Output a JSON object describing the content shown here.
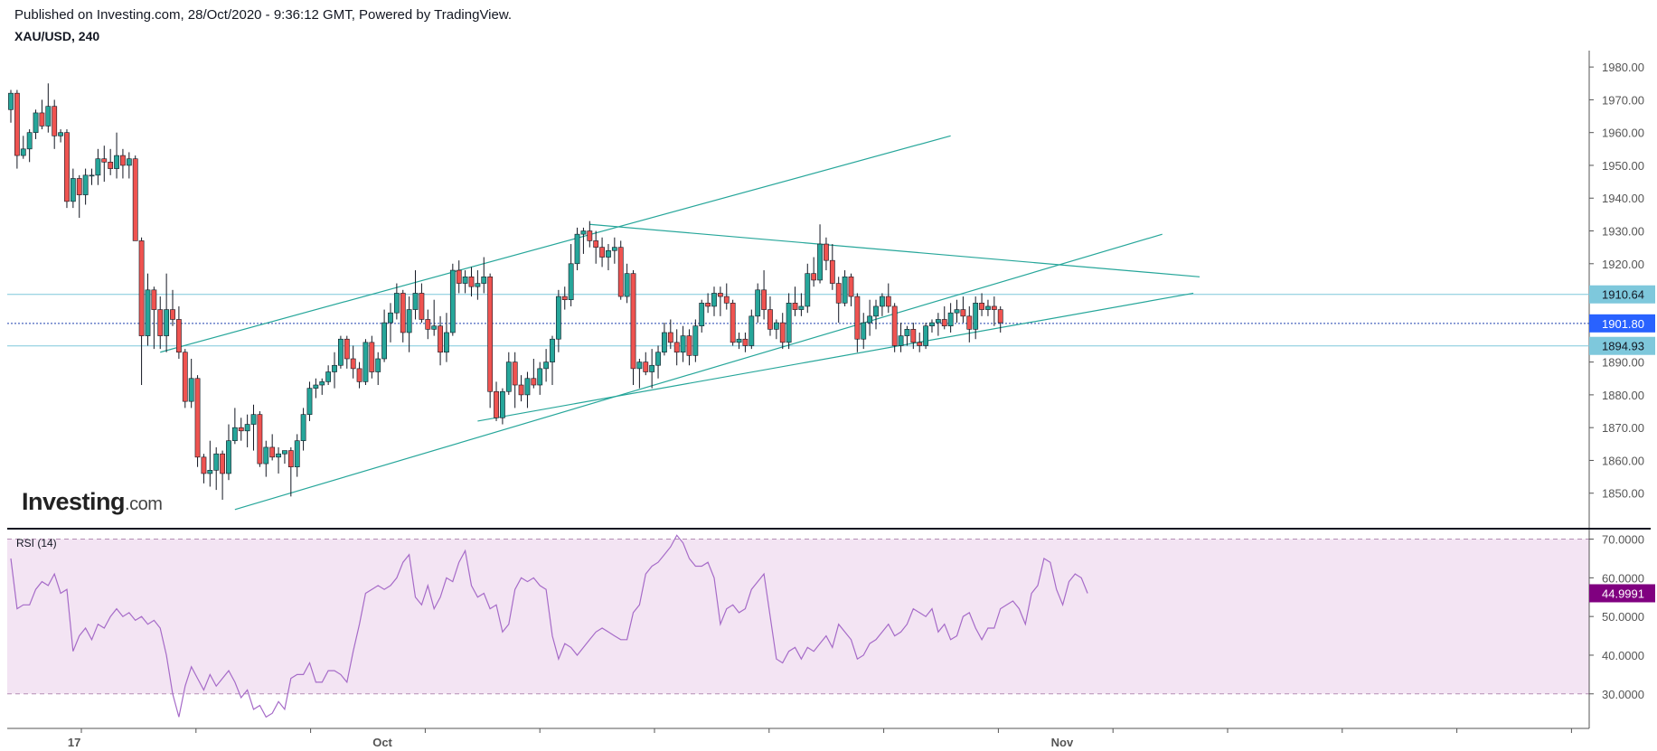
{
  "header": {
    "published": "Published on Investing.com, 28/Oct/2020 - 9:36:12 GMT, Powered by TradingView.",
    "symbol": "XAU/USD, 240"
  },
  "logo": {
    "brand": "Investing",
    "suffix": ".com"
  },
  "colors": {
    "up": "#26a69a",
    "down": "#ef5350",
    "trendline": "#26a69a",
    "hline": "#7ec8dc",
    "current_price_line": "#1e40af",
    "rsi_line": "#a66bc8",
    "rsi_bg": "#f3e4f3",
    "rsi_badge": "#800080",
    "price_badge": "#2962ff"
  },
  "chart_data": [
    {
      "type": "candlestick",
      "title": "XAU/USD, 240",
      "ylim": [
        1840,
        1985
      ],
      "y_ticks": [
        "1980.00",
        "1970.00",
        "1960.00",
        "1950.00",
        "1940.00",
        "1930.00",
        "1920.00",
        "1890.00",
        "1880.00",
        "1870.00",
        "1860.00",
        "1850.00"
      ],
      "x_ticks": [
        {
          "label": "17",
          "bar": 10
        },
        {
          "label": "Oct",
          "bar": 59
        },
        {
          "label": "Nov",
          "bar": 168
        }
      ],
      "price_levels": [
        {
          "value": 1910.64,
          "label": "1910.64",
          "style": "solid"
        },
        {
          "value": 1901.8,
          "label": "1901.80",
          "style": "dotted",
          "current": true
        },
        {
          "value": 1894.93,
          "label": "1894.93",
          "style": "solid"
        }
      ],
      "trendlines": [
        {
          "from": {
            "bar": 24,
            "price": 1893
          },
          "to": {
            "bar": 151,
            "price": 1959
          }
        },
        {
          "from": {
            "bar": 36,
            "price": 1845
          },
          "to": {
            "bar": 185,
            "price": 1929
          }
        },
        {
          "from": {
            "bar": 75,
            "price": 1872
          },
          "to": {
            "bar": 190,
            "price": 1911
          }
        },
        {
          "from": {
            "bar": 93,
            "price": 1932
          },
          "to": {
            "bar": 191,
            "price": 1916
          }
        }
      ],
      "candles": [
        [
          1967,
          1973,
          1963,
          1972
        ],
        [
          1972,
          1973,
          1949,
          1953
        ],
        [
          1953,
          1959,
          1952,
          1955
        ],
        [
          1955,
          1961,
          1951,
          1960
        ],
        [
          1960,
          1967,
          1958,
          1966
        ],
        [
          1966,
          1970,
          1961,
          1962
        ],
        [
          1962,
          1975,
          1960,
          1968
        ],
        [
          1968,
          1970,
          1955,
          1959
        ],
        [
          1959,
          1961,
          1957,
          1960
        ],
        [
          1960,
          1961,
          1937,
          1939
        ],
        [
          1939,
          1949,
          1937,
          1946
        ],
        [
          1946,
          1947,
          1934,
          1941
        ],
        [
          1941,
          1949,
          1938,
          1947
        ],
        [
          1947,
          1949,
          1944,
          1947
        ],
        [
          1947,
          1955,
          1944,
          1952
        ],
        [
          1952,
          1956,
          1945,
          1951
        ],
        [
          1951,
          1955,
          1947,
          1949
        ],
        [
          1949,
          1960,
          1946,
          1953
        ],
        [
          1953,
          1955,
          1946,
          1950
        ],
        [
          1950,
          1954,
          1946,
          1952
        ],
        [
          1952,
          1953,
          1927,
          1927
        ],
        [
          1927,
          1928,
          1883,
          1898
        ],
        [
          1898,
          1917,
          1895,
          1912
        ],
        [
          1912,
          1913,
          1894,
          1906
        ],
        [
          1906,
          1910,
          1894,
          1898
        ],
        [
          1898,
          1917,
          1893,
          1906
        ],
        [
          1906,
          1912,
          1901,
          1903
        ],
        [
          1903,
          1907,
          1891,
          1893
        ],
        [
          1893,
          1894,
          1876,
          1878
        ],
        [
          1878,
          1891,
          1876,
          1885
        ],
        [
          1885,
          1886,
          1858,
          1861
        ],
        [
          1861,
          1862,
          1853,
          1856
        ],
        [
          1856,
          1866,
          1852,
          1857
        ],
        [
          1857,
          1864,
          1851,
          1862
        ],
        [
          1862,
          1863,
          1848,
          1856
        ],
        [
          1856,
          1871,
          1854,
          1866
        ],
        [
          1866,
          1876,
          1865,
          1870
        ],
        [
          1870,
          1873,
          1866,
          1869
        ],
        [
          1869,
          1874,
          1864,
          1871
        ],
        [
          1871,
          1877,
          1863,
          1874
        ],
        [
          1874,
          1875,
          1858,
          1859
        ],
        [
          1859,
          1866,
          1855,
          1864
        ],
        [
          1864,
          1868,
          1860,
          1861
        ],
        [
          1861,
          1864,
          1856,
          1862
        ],
        [
          1862,
          1863,
          1859,
          1863
        ],
        [
          1863,
          1864,
          1849,
          1858
        ],
        [
          1858,
          1868,
          1855,
          1866
        ],
        [
          1866,
          1876,
          1863,
          1874
        ],
        [
          1874,
          1884,
          1872,
          1882
        ],
        [
          1882,
          1885,
          1879,
          1883
        ],
        [
          1883,
          1885,
          1880,
          1884
        ],
        [
          1884,
          1889,
          1883,
          1887
        ],
        [
          1887,
          1893,
          1882,
          1889
        ],
        [
          1889,
          1898,
          1888,
          1897
        ],
        [
          1897,
          1898,
          1888,
          1891
        ],
        [
          1891,
          1895,
          1885,
          1888
        ],
        [
          1888,
          1890,
          1882,
          1884
        ],
        [
          1884,
          1897,
          1883,
          1896
        ],
        [
          1896,
          1898,
          1885,
          1887
        ],
        [
          1887,
          1893,
          1883,
          1891
        ],
        [
          1891,
          1906,
          1890,
          1902
        ],
        [
          1902,
          1908,
          1896,
          1905
        ],
        [
          1905,
          1914,
          1903,
          1911
        ],
        [
          1911,
          1912,
          1896,
          1899
        ],
        [
          1899,
          1910,
          1893,
          1906
        ],
        [
          1906,
          1918,
          1903,
          1911
        ],
        [
          1911,
          1914,
          1902,
          1903
        ],
        [
          1903,
          1906,
          1897,
          1900
        ],
        [
          1900,
          1909,
          1898,
          1901
        ],
        [
          1901,
          1904,
          1889,
          1893
        ],
        [
          1893,
          1905,
          1890,
          1899
        ],
        [
          1899,
          1920,
          1898,
          1918
        ],
        [
          1918,
          1921,
          1911,
          1914
        ],
        [
          1914,
          1918,
          1911,
          1916
        ],
        [
          1916,
          1919,
          1910,
          1913
        ],
        [
          1913,
          1918,
          1909,
          1914
        ],
        [
          1914,
          1922,
          1911,
          1916
        ],
        [
          1916,
          1917,
          1876,
          1881
        ],
        [
          1881,
          1884,
          1872,
          1873
        ],
        [
          1873,
          1882,
          1871,
          1881
        ],
        [
          1881,
          1893,
          1880,
          1890
        ],
        [
          1890,
          1893,
          1876,
          1883
        ],
        [
          1883,
          1886,
          1878,
          1880
        ],
        [
          1880,
          1887,
          1876,
          1885
        ],
        [
          1885,
          1891,
          1882,
          1883
        ],
        [
          1883,
          1890,
          1880,
          1888
        ],
        [
          1888,
          1894,
          1884,
          1890
        ],
        [
          1890,
          1898,
          1883,
          1897
        ],
        [
          1897,
          1912,
          1893,
          1910
        ],
        [
          1910,
          1913,
          1906,
          1909
        ],
        [
          1909,
          1926,
          1907,
          1920
        ],
        [
          1920,
          1931,
          1918,
          1929
        ],
        [
          1929,
          1931,
          1923,
          1930
        ],
        [
          1930,
          1933,
          1925,
          1927
        ],
        [
          1927,
          1930,
          1920,
          1925
        ],
        [
          1925,
          1928,
          1919,
          1922
        ],
        [
          1922,
          1926,
          1918,
          1924
        ],
        [
          1924,
          1928,
          1920,
          1925
        ],
        [
          1925,
          1927,
          1909,
          1910
        ],
        [
          1910,
          1920,
          1908,
          1917
        ],
        [
          1917,
          1918,
          1883,
          1888
        ],
        [
          1888,
          1891,
          1882,
          1890
        ],
        [
          1890,
          1893,
          1886,
          1887
        ],
        [
          1887,
          1894,
          1882,
          1889
        ],
        [
          1889,
          1895,
          1885,
          1893
        ],
        [
          1893,
          1902,
          1892,
          1899
        ],
        [
          1899,
          1903,
          1894,
          1896
        ],
        [
          1896,
          1900,
          1889,
          1893
        ],
        [
          1893,
          1901,
          1890,
          1898
        ],
        [
          1898,
          1900,
          1889,
          1892
        ],
        [
          1892,
          1903,
          1890,
          1901
        ],
        [
          1901,
          1909,
          1899,
          1908
        ],
        [
          1908,
          1911,
          1905,
          1907
        ],
        [
          1907,
          1913,
          1904,
          1911
        ],
        [
          1911,
          1913,
          1904,
          1910
        ],
        [
          1910,
          1914,
          1906,
          1908
        ],
        [
          1908,
          1909,
          1895,
          1896
        ],
        [
          1896,
          1899,
          1894,
          1897
        ],
        [
          1897,
          1899,
          1893,
          1895
        ],
        [
          1895,
          1906,
          1894,
          1904
        ],
        [
          1904,
          1914,
          1902,
          1912
        ],
        [
          1912,
          1918,
          1903,
          1906
        ],
        [
          1906,
          1910,
          1898,
          1900
        ],
        [
          1900,
          1903,
          1897,
          1902
        ],
        [
          1902,
          1905,
          1894,
          1896
        ],
        [
          1896,
          1911,
          1894,
          1908
        ],
        [
          1908,
          1913,
          1904,
          1906
        ],
        [
          1906,
          1911,
          1904,
          1907
        ],
        [
          1907,
          1920,
          1905,
          1917
        ],
        [
          1917,
          1922,
          1913,
          1915
        ],
        [
          1915,
          1932,
          1914,
          1926
        ],
        [
          1926,
          1928,
          1918,
          1921
        ],
        [
          1921,
          1926,
          1912,
          1914
        ],
        [
          1914,
          1916,
          1902,
          1908
        ],
        [
          1908,
          1918,
          1907,
          1916
        ],
        [
          1916,
          1917,
          1907,
          1910
        ],
        [
          1910,
          1911,
          1893,
          1897
        ],
        [
          1897,
          1905,
          1894,
          1902
        ],
        [
          1902,
          1909,
          1898,
          1904
        ],
        [
          1904,
          1909,
          1900,
          1907
        ],
        [
          1907,
          1911,
          1904,
          1910
        ],
        [
          1910,
          1914,
          1905,
          1907
        ],
        [
          1907,
          1908,
          1893,
          1895
        ],
        [
          1895,
          1902,
          1893,
          1898
        ],
        [
          1898,
          1901,
          1895,
          1900
        ],
        [
          1900,
          1902,
          1894,
          1896
        ],
        [
          1896,
          1899,
          1893,
          1895
        ],
        [
          1895,
          1902,
          1894,
          1901
        ],
        [
          1901,
          1903,
          1899,
          1902
        ],
        [
          1902,
          1905,
          1898,
          1903
        ],
        [
          1903,
          1907,
          1900,
          1901
        ],
        [
          1901,
          1908,
          1899,
          1905
        ],
        [
          1905,
          1909,
          1902,
          1906
        ],
        [
          1906,
          1910,
          1902,
          1904
        ],
        [
          1904,
          1907,
          1896,
          1900
        ],
        [
          1900,
          1910,
          1897,
          1908
        ],
        [
          1908,
          1911,
          1904,
          1906
        ],
        [
          1906,
          1909,
          1904,
          1907
        ],
        [
          1907,
          1910,
          1901,
          1906
        ],
        [
          1906,
          1907,
          1899,
          1902
        ]
      ]
    },
    {
      "type": "line",
      "title": "RSI (14)",
      "ylim": [
        22,
        72
      ],
      "y_ticks": [
        "70.0000",
        "60.0000",
        "50.0000",
        "40.0000",
        "30.0000"
      ],
      "bands": [
        30,
        70
      ],
      "last_value": "44.9991",
      "values": [
        65,
        52,
        53,
        53,
        57,
        59,
        58,
        61,
        56,
        57,
        41,
        45,
        47,
        44,
        48,
        47,
        50,
        52,
        50,
        51,
        49,
        50,
        48,
        49,
        47,
        40,
        30,
        24,
        32,
        37,
        34,
        31,
        35,
        32,
        34,
        36,
        33,
        29,
        31,
        26,
        27,
        24,
        25,
        28,
        26,
        34,
        35,
        35,
        38,
        33,
        33,
        36,
        36,
        35,
        33,
        41,
        48,
        56,
        57,
        58,
        57,
        58,
        60,
        64,
        66,
        55,
        53,
        58,
        52,
        55,
        60,
        59,
        64,
        67,
        58,
        55,
        56,
        52,
        53,
        46,
        48,
        57,
        60,
        59,
        60,
        58,
        57,
        45,
        39,
        43,
        42,
        40,
        42,
        44,
        46,
        47,
        46,
        45,
        44,
        44,
        51,
        53,
        61,
        63,
        64,
        66,
        68,
        71,
        69,
        65,
        63,
        63,
        64,
        60,
        48,
        52,
        53,
        51,
        52,
        57,
        59,
        61,
        50,
        39,
        38,
        41,
        42,
        39,
        42,
        41,
        43,
        45,
        42,
        48,
        46,
        44,
        39,
        40,
        43,
        44,
        46,
        48,
        45,
        46,
        48,
        52,
        51,
        50,
        52,
        46,
        48,
        44,
        45,
        50,
        51,
        47,
        44,
        47,
        47,
        52,
        53,
        54,
        52,
        48,
        56,
        58,
        65,
        64,
        57,
        53,
        59,
        61,
        60,
        56
      ]
    }
  ]
}
